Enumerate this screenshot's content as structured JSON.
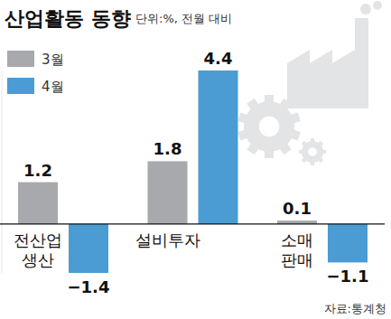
{
  "chart_data": {
    "type": "bar",
    "title": "산업활동 동향",
    "subtitle": "단위:%, 전월 대비",
    "source": "자료:통계청",
    "categories": [
      "전산업 생산",
      "설비투자",
      "소매 판매"
    ],
    "series": [
      {
        "name": "3월",
        "color": "#a7a9ac",
        "values": [
          1.2,
          1.8,
          0.1
        ]
      },
      {
        "name": "4월",
        "color": "#4b9cd3",
        "values": [
          -1.4,
          4.4,
          -1.1
        ],
        "value_labels": [
          "−1.4",
          "4.4",
          "−1.1"
        ]
      }
    ],
    "ylim": [
      -1.4,
      4.4
    ],
    "yticks": [
      0
    ],
    "grid": false,
    "tick_labels": false,
    "data_labels": true,
    "legend": "upper left"
  }
}
